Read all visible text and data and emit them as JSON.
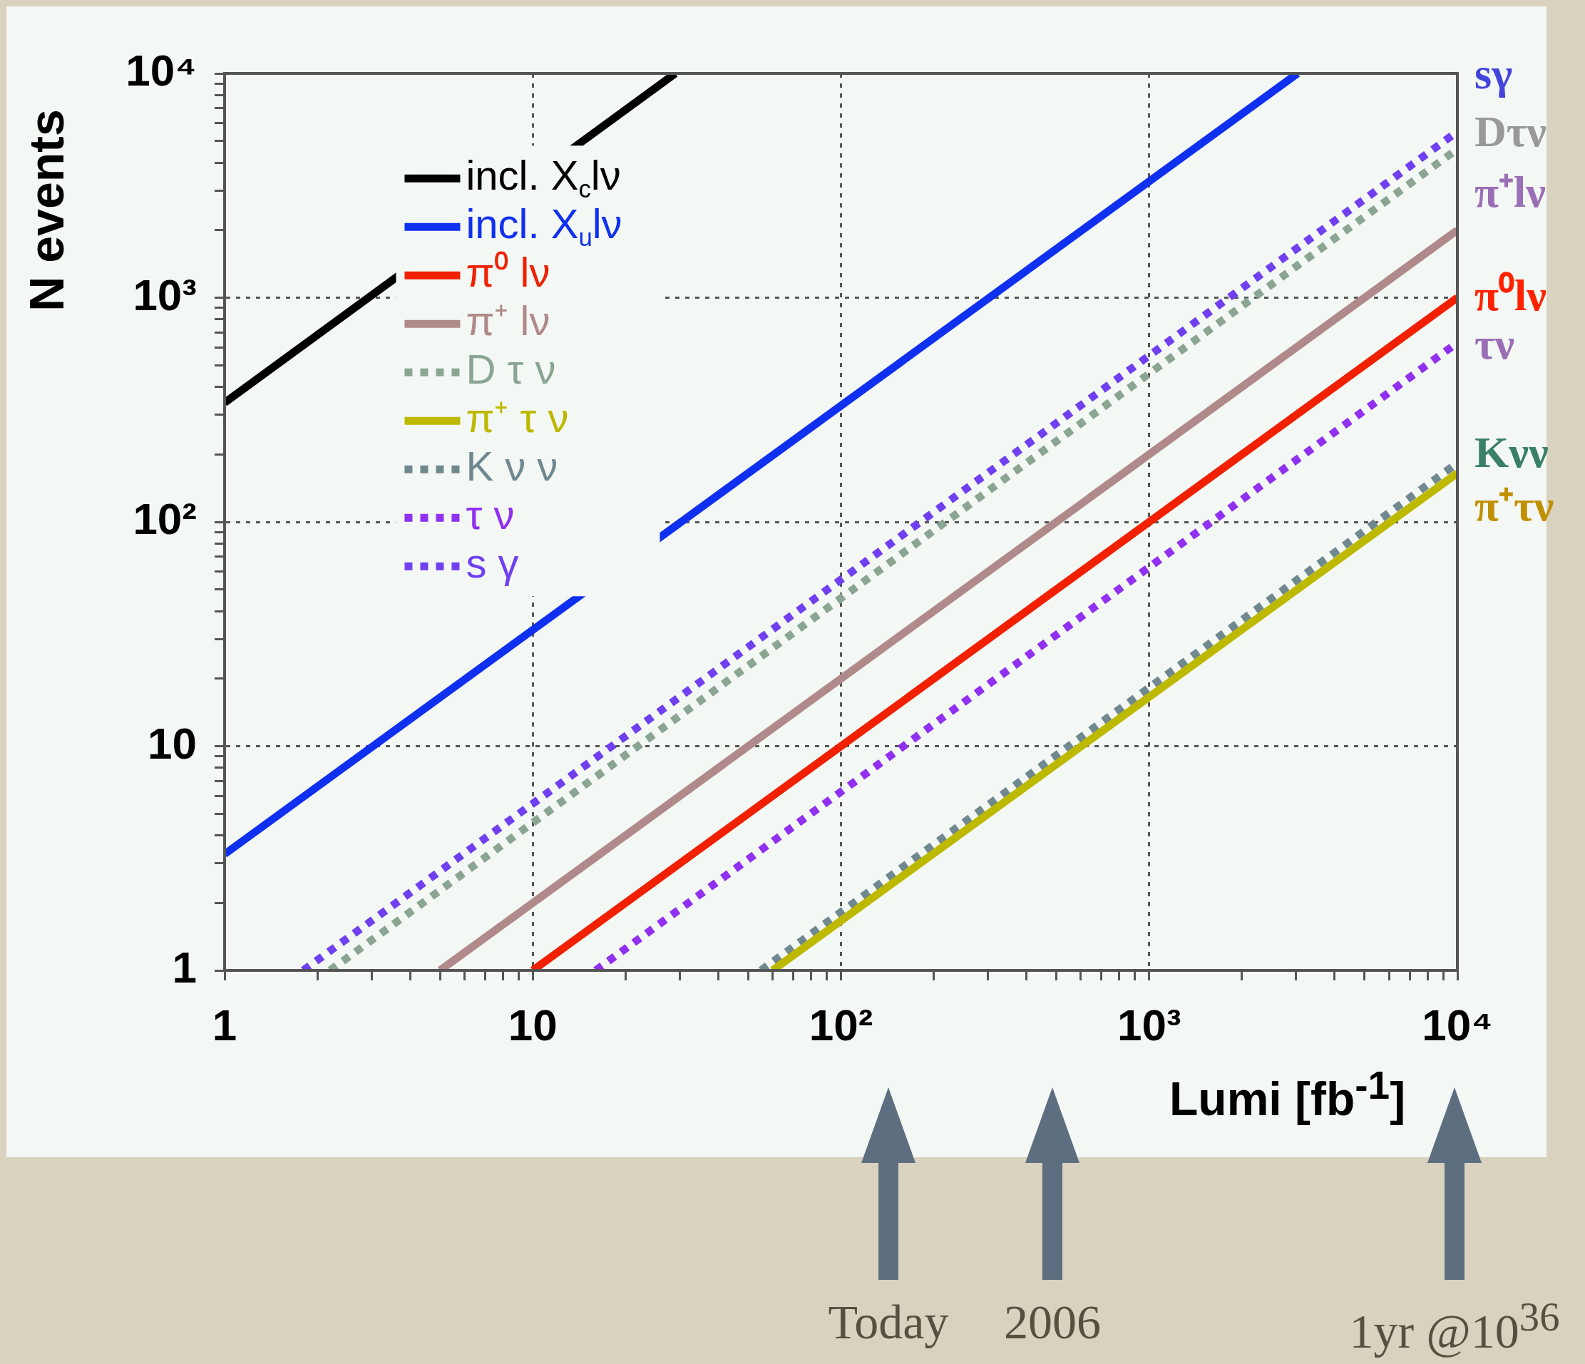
{
  "chart_data": {
    "type": "line",
    "xlabel": "Lumi [fb$^{-1}$]",
    "ylabel": "N events",
    "log": "xy",
    "grid": true,
    "legend": "top left",
    "marker": "none",
    "xlim": [
      1,
      10000
    ],
    "ylim": [
      1,
      10000
    ],
    "xticks": [
      1,
      {
        "value": 2,
        "label": null
      },
      {
        "value": 3,
        "label": null
      },
      {
        "value": 4,
        "label": null
      },
      {
        "value": 5,
        "label": null
      },
      {
        "value": 6,
        "label": null
      },
      {
        "value": 7,
        "label": null
      },
      {
        "value": 8,
        "label": null
      },
      {
        "value": 9,
        "label": null
      },
      10,
      {
        "value": 20,
        "label": null
      },
      {
        "value": 30,
        "label": null
      },
      {
        "value": 40,
        "label": null
      },
      {
        "value": 50,
        "label": null
      },
      {
        "value": 60,
        "label": null
      },
      {
        "value": 70,
        "label": null
      },
      {
        "value": 80,
        "label": null
      },
      {
        "value": 90,
        "label": null
      },
      {
        "value": 100,
        "label": "10²"
      },
      {
        "value": 200,
        "label": null
      },
      {
        "value": 300,
        "label": null
      },
      {
        "value": 400,
        "label": null
      },
      {
        "value": 500,
        "label": null
      },
      {
        "value": 600,
        "label": null
      },
      {
        "value": 700,
        "label": null
      },
      {
        "value": 800,
        "label": null
      },
      {
        "value": 900,
        "label": null
      },
      {
        "value": 1000,
        "label": "10³"
      },
      {
        "value": 2000,
        "label": null
      },
      {
        "value": 3000,
        "label": null
      },
      {
        "value": 4000,
        "label": null
      },
      {
        "value": 5000,
        "label": null
      },
      {
        "value": 6000,
        "label": null
      },
      {
        "value": 7000,
        "label": null
      },
      {
        "value": 8000,
        "label": null
      },
      {
        "value": 9000,
        "label": null
      },
      {
        "value": 10000,
        "label": "10⁴"
      }
    ],
    "yticks": [
      1,
      {
        "value": 2,
        "label": null
      },
      {
        "value": 3,
        "label": null
      },
      {
        "value": 4,
        "label": null
      },
      {
        "value": 5,
        "label": null
      },
      {
        "value": 6,
        "label": null
      },
      {
        "value": 7,
        "label": null
      },
      {
        "value": 8,
        "label": null
      },
      {
        "value": 9,
        "label": null
      },
      10,
      {
        "value": 20,
        "label": null
      },
      {
        "value": 30,
        "label": null
      },
      {
        "value": 40,
        "label": null
      },
      {
        "value": 50,
        "label": null
      },
      {
        "value": 60,
        "label": null
      },
      {
        "value": 70,
        "label": null
      },
      {
        "value": 80,
        "label": null
      },
      {
        "value": 90,
        "label": null
      },
      {
        "value": 100,
        "label": "10²"
      },
      {
        "value": 200,
        "label": null
      },
      {
        "value": 300,
        "label": null
      },
      {
        "value": 400,
        "label": null
      },
      {
        "value": 500,
        "label": null
      },
      {
        "value": 600,
        "label": null
      },
      {
        "value": 700,
        "label": null
      },
      {
        "value": 800,
        "label": null
      },
      {
        "value": 900,
        "label": null
      },
      {
        "value": 1000,
        "label": "10³"
      },
      {
        "value": 2000,
        "label": null
      },
      {
        "value": 3000,
        "label": null
      },
      {
        "value": 4000,
        "label": null
      },
      {
        "value": 5000,
        "label": null
      },
      {
        "value": 6000,
        "label": null
      },
      {
        "value": 7000,
        "label": null
      },
      {
        "value": 8000,
        "label": null
      },
      {
        "value": 9000,
        "label": null
      },
      {
        "value": 10000,
        "label": "10⁴"
      }
    ],
    "series": [
      {
        "name": "incl. X$_{c}$lν",
        "color": "#000000",
        "line_style": "solid",
        "x": [
          1,
          29
        ],
        "values": [
          340,
          10000
        ]
      },
      {
        "name": "incl. X$_{u}$lν",
        "color": "#1030f0",
        "line_style": "solid",
        "x": [
          1,
          3030
        ],
        "values": [
          3.3,
          10000
        ]
      },
      {
        "name": "π⁰ lν",
        "color": "#f02000",
        "line_style": "solid",
        "x": [
          10,
          10000
        ],
        "values": [
          1,
          1000
        ]
      },
      {
        "name": "π⁺ lν",
        "color": "#b08a8a",
        "line_style": "solid",
        "x": [
          5,
          10000
        ],
        "values": [
          1,
          2000
        ]
      },
      {
        "name": "D τ ν",
        "color": "#8aa592",
        "line_style": "dotted",
        "x": [
          2.2,
          10000
        ],
        "values": [
          1,
          4600
        ]
      },
      {
        "name": "π⁺ τ ν",
        "color": "#bdb800",
        "line_style": "solid",
        "x": [
          60,
          10000
        ],
        "values": [
          1,
          165
        ]
      },
      {
        "name": "K ν ν",
        "color": "#708890",
        "line_style": "dotted",
        "x": [
          55,
          10000
        ],
        "values": [
          1,
          183
        ]
      },
      {
        "name": "τ ν",
        "color": "#9030f0",
        "line_style": "dotted",
        "x": [
          16,
          10000
        ],
        "values": [
          1,
          630
        ]
      },
      {
        "name": "s γ",
        "color": "#7040f0",
        "line_style": "dotted",
        "x": [
          1.8,
          10000
        ],
        "values": [
          1,
          5500
        ]
      }
    ],
    "annotations": [
      "sγ",
      "Dτν",
      "π⁺lν",
      "π⁰lν",
      "τν",
      "Kνν",
      "π⁺τν",
      "Today",
      "2006",
      "1yr @10$^{36}$"
    ]
  }
}
